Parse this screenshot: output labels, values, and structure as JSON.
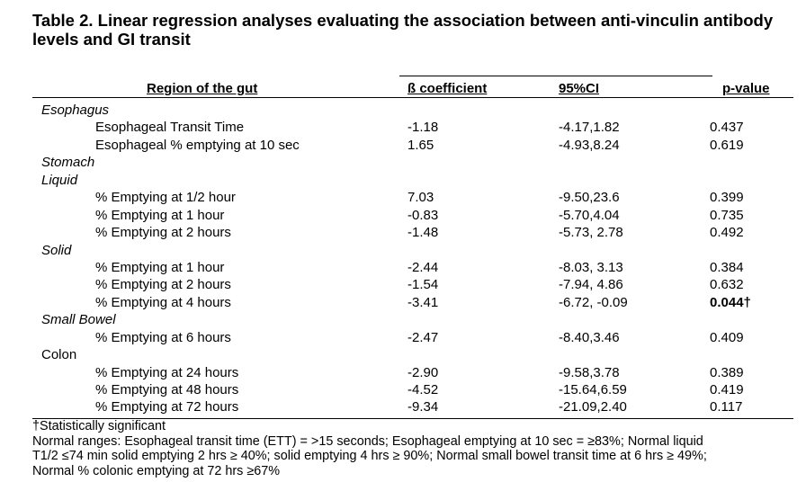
{
  "title": "Table 2. Linear regression analyses evaluating the association between anti-vinculin antibody levels and GI transit",
  "columns": {
    "region": "Region of the gut",
    "coef": "ß coefficient",
    "ci": "95%CI",
    "p": "p-value"
  },
  "rows": [
    {
      "type": "section",
      "label": "Esophagus",
      "italic": true
    },
    {
      "type": "data",
      "label": "Esophageal Transit Time",
      "coef": "-1.18",
      "ci": "-4.17,1.82",
      "p": "0.437"
    },
    {
      "type": "data",
      "label": "Esophageal % emptying at 10 sec",
      "coef": "1.65",
      "ci": "-4.93,8.24",
      "p": "0.619"
    },
    {
      "type": "section",
      "label": "Stomach",
      "italic": true
    },
    {
      "type": "section",
      "label": "Liquid",
      "italic": true
    },
    {
      "type": "data",
      "label": "% Emptying at 1/2 hour",
      "coef": "7.03",
      "ci": "-9.50,23.6",
      "p": "0.399"
    },
    {
      "type": "data",
      "label": "% Emptying at 1 hour",
      "coef": "-0.83",
      "ci": "-5.70,4.04",
      "p": "0.735"
    },
    {
      "type": "data",
      "label": "% Emptying at 2 hours",
      "coef": "-1.48",
      "ci": "-5.73, 2.78",
      "p": "0.492"
    },
    {
      "type": "section",
      "label": "Solid",
      "italic": true
    },
    {
      "type": "data",
      "label": "% Emptying at 1 hour",
      "coef": "-2.44",
      "ci": "-8.03, 3.13",
      "p": "0.384"
    },
    {
      "type": "data",
      "label": "% Emptying at 2 hours",
      "coef": "-1.54",
      "ci": "-7.94, 4.86",
      "p": "0.632"
    },
    {
      "type": "data",
      "label": "% Emptying at 4 hours",
      "coef": "-3.41",
      "ci": "-6.72, -0.09",
      "p": "0.044†",
      "significant": true
    },
    {
      "type": "section",
      "label": "Small Bowel",
      "italic": true
    },
    {
      "type": "data",
      "label": "% Emptying at 6 hours",
      "coef": "-2.47",
      "ci": "-8.40,3.46",
      "p": "0.409"
    },
    {
      "type": "section",
      "label": "Colon",
      "italic": false
    },
    {
      "type": "data",
      "label": "% Emptying at 24 hours",
      "coef": "-2.90",
      "ci": "-9.58,3.78",
      "p": "0.389"
    },
    {
      "type": "data",
      "label": "% Emptying at 48 hours",
      "coef": "-4.52",
      "ci": "-15.64,6.59",
      "p": "0.419"
    },
    {
      "type": "data",
      "label": "% Emptying at 72 hours",
      "coef": "-9.34",
      "ci": "-21.09,2.40",
      "p": "0.117"
    }
  ],
  "footnotes": {
    "significance": "†Statistically significant",
    "normal_ranges": [
      "Normal ranges: Esophageal transit time (ETT) = >15 seconds; Esophageal emptying at 10 sec = ≥83%; Normal liquid",
      "T1/2 ≤74 min solid emptying 2 hrs ≥ 40%; solid emptying 4 hrs ≥ 90%; Normal small bowel transit time at 6 hrs ≥ 49%;",
      "Normal % colonic emptying at 72 hrs ≥67%"
    ]
  }
}
